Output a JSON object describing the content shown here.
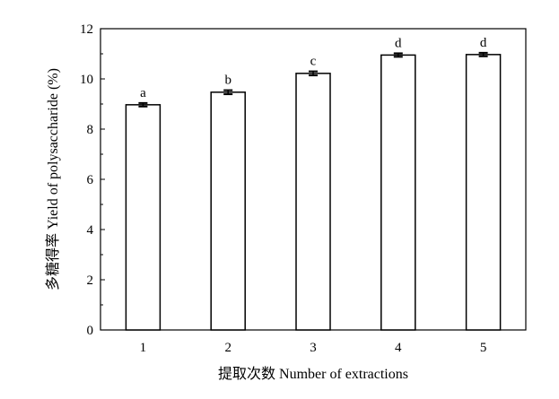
{
  "chart_data": {
    "type": "bar",
    "xlabel": "提取次数 Number of extractions",
    "ylabel": "多糖得率 Yield of polysaccharide (%)",
    "categories": [
      "1",
      "2",
      "3",
      "4",
      "5"
    ],
    "values": [
      8.97,
      9.47,
      10.22,
      10.95,
      10.97
    ],
    "errors": [
      0.07,
      0.08,
      0.08,
      0.07,
      0.07
    ],
    "significance_labels": [
      "a",
      "b",
      "c",
      "d",
      "d"
    ],
    "ylim": [
      0,
      12
    ],
    "yticks": [
      0,
      2,
      4,
      6,
      8,
      10,
      12
    ],
    "bar_fill": "#ffffff",
    "bar_stroke": "#000000",
    "grid": false,
    "legend": "none"
  }
}
